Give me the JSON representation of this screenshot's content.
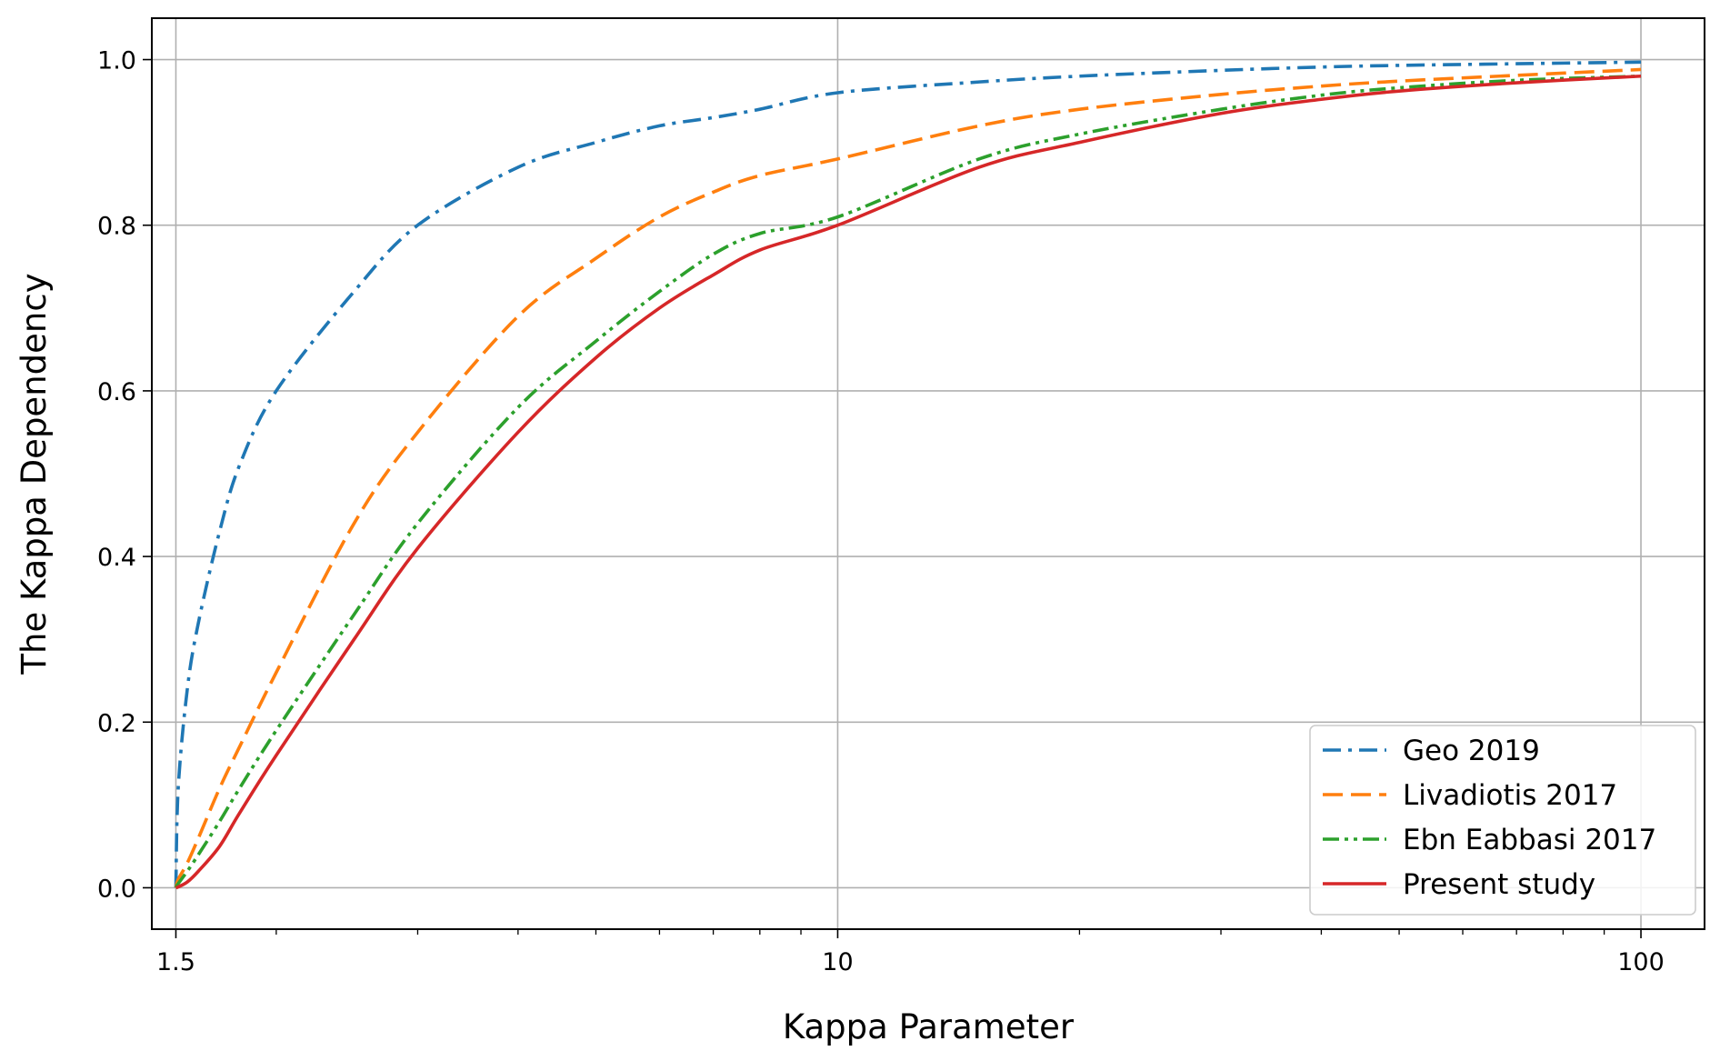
{
  "chart_data": {
    "type": "line",
    "xlabel": "Kappa Parameter",
    "ylabel": "The Kappa Dependency",
    "xscale": "log",
    "xlim": [
      1.4,
      120
    ],
    "ylim": [
      -0.05,
      1.05
    ],
    "xticks": [
      {
        "value": 1.5,
        "label": "1.5"
      },
      {
        "value": 10,
        "label": "10"
      },
      {
        "value": 100,
        "label": "100"
      }
    ],
    "yticks": [
      {
        "value": 0.0,
        "label": "0.0"
      },
      {
        "value": 0.2,
        "label": "0.2"
      },
      {
        "value": 0.4,
        "label": "0.4"
      },
      {
        "value": 0.6,
        "label": "0.6"
      },
      {
        "value": 0.8,
        "label": "0.8"
      },
      {
        "value": 1.0,
        "label": "1.0"
      }
    ],
    "grid": true,
    "legend_position": "lower-right",
    "x": [
      1.5,
      1.51,
      1.55,
      1.6,
      1.7,
      1.8,
      2,
      2.5,
      3,
      4,
      5,
      6,
      7,
      8,
      10,
      15,
      20,
      30,
      40,
      50,
      70,
      100
    ],
    "series": [
      {
        "name": "Geo 2019",
        "color": "#1f77b4",
        "dash": "dashdot",
        "values": [
          0.0,
          0.12,
          0.24,
          0.32,
          0.43,
          0.51,
          0.6,
          0.72,
          0.8,
          0.87,
          0.9,
          0.92,
          0.93,
          0.94,
          0.96,
          0.973,
          0.98,
          0.987,
          0.991,
          0.993,
          0.995,
          0.997
        ]
      },
      {
        "name": "Livadiotis 2017",
        "color": "#ff7f0e",
        "dash": "dashed",
        "values": [
          0.0,
          0.01,
          0.03,
          0.06,
          0.12,
          0.17,
          0.26,
          0.44,
          0.55,
          0.69,
          0.76,
          0.81,
          0.84,
          0.86,
          0.88,
          0.92,
          0.94,
          0.958,
          0.968,
          0.974,
          0.981,
          0.988
        ]
      },
      {
        "name": "Ebn Eabbasi 2017",
        "color": "#2ca02c",
        "dash": "dashdotdot",
        "values": [
          0.0,
          0.005,
          0.02,
          0.04,
          0.08,
          0.12,
          0.19,
          0.33,
          0.44,
          0.58,
          0.66,
          0.72,
          0.765,
          0.79,
          0.81,
          0.88,
          0.91,
          0.94,
          0.957,
          0.966,
          0.975,
          0.98
        ]
      },
      {
        "name": "Present study",
        "color": "#d62728",
        "dash": "solid",
        "values": [
          0.0,
          0.001,
          0.007,
          0.02,
          0.05,
          0.09,
          0.16,
          0.3,
          0.41,
          0.55,
          0.64,
          0.7,
          0.74,
          0.77,
          0.8,
          0.87,
          0.9,
          0.935,
          0.952,
          0.962,
          0.972,
          0.98
        ]
      }
    ]
  }
}
